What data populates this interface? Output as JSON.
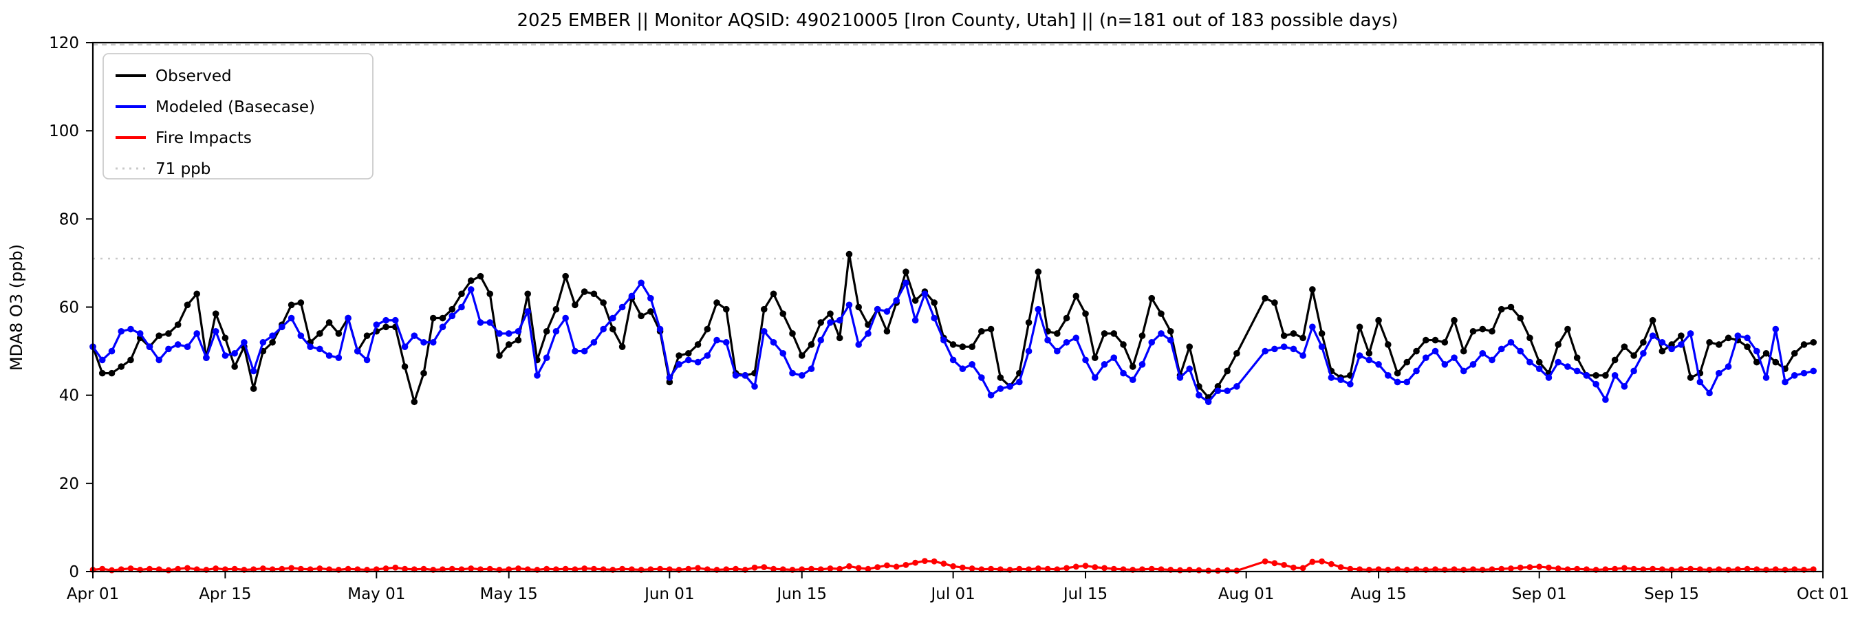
{
  "title": "2025 EMBER || Monitor AQSID: 490210005 [Iron County, Utah] || (n=181 out of 183 possible days)",
  "ylabel": "MDA8 O3 (ppb)",
  "legend": [
    {
      "label": "Observed",
      "color": "#000000",
      "style": "solid"
    },
    {
      "label": "Modeled (Basecase)",
      "color": "#0000ff",
      "style": "solid"
    },
    {
      "label": "Fire Impacts",
      "color": "#ff0000",
      "style": "solid"
    },
    {
      "label": "71 ppb",
      "color": "#c9c9c9",
      "style": "dotted"
    }
  ],
  "chart_data": {
    "type": "line",
    "title": "2025 EMBER || Monitor AQSID: 490210005 [Iron County, Utah] || (n=181 out of 183 possible days)",
    "xlabel": "",
    "ylabel": "MDA8 O3 (ppb)",
    "ylim": [
      0,
      120
    ],
    "yticks": [
      0,
      20,
      40,
      60,
      80,
      100,
      120
    ],
    "grid": false,
    "legend_position": "upper left",
    "threshold_line": {
      "value": 71,
      "label": "71 ppb",
      "color": "#c9c9c9",
      "style": "dotted"
    },
    "top_reference_line": {
      "value": 120,
      "color": "#c9c9c9",
      "style": "dashed"
    },
    "x_total_days": 183,
    "n_days_with_data": 181,
    "missing_day_indices": [
      122,
      123
    ],
    "xticks": [
      {
        "label": "Apr 01",
        "day": 0
      },
      {
        "label": "Apr 15",
        "day": 14
      },
      {
        "label": "May 01",
        "day": 30
      },
      {
        "label": "May 15",
        "day": 44
      },
      {
        "label": "Jun 01",
        "day": 61
      },
      {
        "label": "Jun 15",
        "day": 75
      },
      {
        "label": "Jul 01",
        "day": 91
      },
      {
        "label": "Jul 15",
        "day": 105
      },
      {
        "label": "Aug 01",
        "day": 122
      },
      {
        "label": "Aug 15",
        "day": 136
      },
      {
        "label": "Sep 01",
        "day": 153
      },
      {
        "label": "Sep 15",
        "day": 167
      },
      {
        "label": "Oct 01",
        "day": 183
      }
    ],
    "series": [
      {
        "name": "Observed",
        "color": "#000000",
        "values": [
          51,
          45,
          45,
          46.5,
          48,
          53,
          51,
          53.5,
          54,
          56,
          60.5,
          63,
          48.5,
          58.5,
          53,
          46.5,
          51,
          41.5,
          50,
          52,
          56,
          60.5,
          61,
          52,
          54,
          56.5,
          54,
          57.5,
          50,
          53.5,
          54.5,
          55.5,
          55.5,
          46.5,
          38.5,
          45,
          57.5,
          57.5,
          59.5,
          63,
          66,
          67,
          63,
          49,
          51.5,
          52.5,
          63,
          48,
          54.5,
          59.5,
          67,
          60.5,
          63.5,
          63,
          61,
          55,
          51,
          62,
          58,
          59,
          54.5,
          43,
          49,
          49.5,
          51.5,
          55,
          61,
          59.5,
          45,
          44.5,
          45,
          59.5,
          63,
          58.5,
          54,
          49,
          51.5,
          56.5,
          58.5,
          53,
          72,
          60,
          56,
          59.5,
          54.5,
          61,
          68,
          61.5,
          63.5,
          61,
          53,
          51.5,
          51,
          51,
          54.5,
          55,
          44,
          42,
          45,
          56.5,
          68,
          54.5,
          54,
          57.5,
          62.5,
          58.5,
          48.5,
          54,
          54,
          51.5,
          46.5,
          53.5,
          62,
          58.5,
          54.5,
          44.5,
          51,
          42,
          39.5,
          42,
          45.5,
          49.5,
          62,
          61,
          53.5,
          54,
          53,
          64,
          54,
          45.5,
          44,
          44.5,
          55.5,
          49.5,
          57,
          51.5,
          45,
          47.5,
          50,
          52.5,
          52.5,
          52,
          57,
          50,
          54.5,
          55,
          54.5,
          59.5,
          60,
          57.5,
          53,
          47.5,
          45,
          51.5,
          55,
          48.5,
          44.5,
          44.5,
          44.5,
          48,
          51,
          49,
          52,
          57,
          50,
          51.5,
          53.5,
          44,
          45,
          52,
          51.5,
          53,
          52.5,
          51,
          47.5,
          49.5,
          47.5,
          46,
          49.5,
          51.5,
          52
        ]
      },
      {
        "name": "Modeled (Basecase)",
        "color": "#0000ff",
        "values": [
          51,
          48,
          50,
          54.5,
          55,
          54,
          51,
          48,
          50.5,
          51.5,
          51,
          54,
          48.5,
          54.5,
          49,
          49.5,
          52,
          45.5,
          52,
          53.5,
          55.5,
          57.5,
          53.5,
          51,
          50.5,
          49,
          48.5,
          57.5,
          50,
          48,
          56,
          57,
          57,
          51,
          53.5,
          52,
          52,
          55.5,
          58,
          60,
          64,
          56.5,
          56.5,
          54,
          54,
          54.5,
          59,
          44.5,
          48.5,
          54.5,
          57.5,
          50,
          50,
          52,
          55,
          57.5,
          60,
          62.5,
          65.5,
          62,
          55,
          44,
          47,
          48,
          47.5,
          49,
          52.5,
          52,
          44.5,
          44.5,
          42,
          54.5,
          52,
          49.5,
          45,
          44.5,
          46,
          52.5,
          56.5,
          57,
          60.5,
          51.5,
          54,
          59.5,
          59,
          61.5,
          65.5,
          57,
          63,
          57.5,
          52.5,
          48,
          46,
          47,
          44,
          40,
          41.5,
          42,
          43,
          50,
          59.5,
          52.5,
          50,
          52,
          53,
          48,
          44,
          47,
          48.5,
          45,
          43.5,
          47,
          52,
          54,
          52.5,
          44,
          46,
          40,
          38.5,
          41,
          41,
          42,
          50,
          50.5,
          51,
          50.5,
          49,
          55.5,
          51,
          44,
          43.5,
          42.5,
          49,
          48,
          47,
          44.5,
          43,
          43,
          45.5,
          48.5,
          50,
          47,
          48.5,
          45.5,
          47,
          49.5,
          48,
          50.5,
          52,
          50,
          47.5,
          46,
          44,
          47.5,
          46.5,
          45.5,
          44.5,
          42.5,
          39,
          44.5,
          42,
          45.5,
          49.5,
          53.5,
          52,
          50.5,
          51.5,
          54,
          43,
          40.5,
          45,
          46.5,
          53.5,
          53,
          50,
          44,
          55,
          43,
          44.5,
          45,
          45.5
        ]
      },
      {
        "name": "Fire Impacts",
        "color": "#ff0000",
        "values": [
          0.4,
          0.6,
          0.3,
          0.5,
          0.7,
          0.4,
          0.6,
          0.5,
          0.3,
          0.6,
          0.8,
          0.5,
          0.4,
          0.7,
          0.5,
          0.6,
          0.4,
          0.5,
          0.7,
          0.5,
          0.6,
          0.8,
          0.6,
          0.5,
          0.7,
          0.5,
          0.4,
          0.6,
          0.5,
          0.4,
          0.5,
          0.7,
          0.9,
          0.6,
          0.5,
          0.6,
          0.4,
          0.5,
          0.6,
          0.5,
          0.7,
          0.5,
          0.6,
          0.4,
          0.5,
          0.7,
          0.5,
          0.4,
          0.6,
          0.5,
          0.6,
          0.5,
          0.7,
          0.6,
          0.5,
          0.4,
          0.6,
          0.5,
          0.4,
          0.5,
          0.6,
          0.5,
          0.4,
          0.6,
          0.8,
          0.5,
          0.4,
          0.5,
          0.6,
          0.4,
          0.9,
          1.0,
          0.6,
          0.5,
          0.4,
          0.5,
          0.6,
          0.5,
          0.7,
          0.6,
          1.2,
          0.8,
          0.6,
          1.0,
          1.4,
          1.1,
          1.5,
          2.0,
          2.4,
          2.3,
          1.8,
          1.2,
          0.9,
          0.7,
          0.5,
          0.6,
          0.5,
          0.4,
          0.6,
          0.5,
          0.7,
          0.6,
          0.5,
          0.8,
          1.1,
          1.3,
          1.0,
          0.8,
          0.6,
          0.5,
          0.4,
          0.5,
          0.6,
          0.5,
          0.4,
          0.3,
          0.4,
          0.3,
          0.2,
          0.2,
          0.3,
          0.2,
          2.3,
          1.9,
          1.5,
          0.9,
          0.8,
          2.2,
          2.3,
          1.7,
          1.0,
          0.6,
          0.5,
          0.4,
          0.5,
          0.4,
          0.5,
          0.4,
          0.5,
          0.4,
          0.5,
          0.4,
          0.5,
          0.4,
          0.5,
          0.4,
          0.5,
          0.6,
          0.7,
          0.9,
          1.0,
          1.1,
          0.9,
          0.7,
          0.5,
          0.6,
          0.5,
          0.4,
          0.5,
          0.6,
          0.8,
          0.6,
          0.5,
          0.6,
          0.5,
          0.4,
          0.5,
          0.6,
          0.5,
          0.4,
          0.5,
          0.4,
          0.5,
          0.6,
          0.5,
          0.4,
          0.5,
          0.4,
          0.5,
          0.4,
          0.5
        ]
      }
    ]
  }
}
